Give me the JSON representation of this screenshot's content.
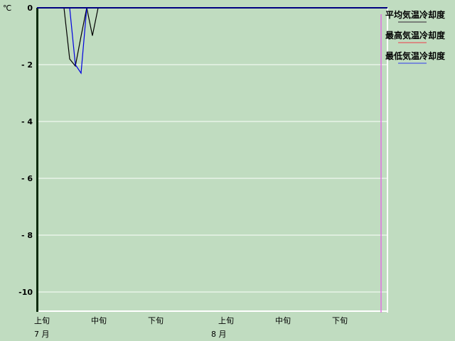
{
  "chart_data": {
    "type": "line",
    "unit_label": "℃",
    "ylim": [
      -10.7,
      0
    ],
    "yticks": [
      0,
      -2,
      -4,
      -6,
      -8,
      -10
    ],
    "ytick_labels": [
      "0",
      "- 2",
      "- 4",
      "- 6",
      "- 8",
      "-10"
    ],
    "grid": true,
    "legend_placement": "top-right",
    "xtick_labels": [
      "上旬",
      "中旬",
      "下旬",
      "上旬",
      "中旬",
      "下旬"
    ],
    "month_labels": [
      "7 月",
      "8 月"
    ],
    "x_start": "7/1",
    "x_end": "8/31",
    "marker_date": "8/31",
    "series": [
      {
        "name": "平均気温冷却度",
        "color": "#000000",
        "legend_color": "#606060",
        "points": [
          [
            "7/1",
            0
          ],
          [
            "7/5",
            0
          ],
          [
            "7/6",
            -1.8
          ],
          [
            "7/7",
            -2.05
          ],
          [
            "7/8",
            -1.0
          ],
          [
            "7/9",
            0
          ],
          [
            "7/10",
            -0.98
          ],
          [
            "7/11",
            0
          ],
          [
            "8/31",
            0
          ]
        ]
      },
      {
        "name": "最高気温冷却度",
        "color": "#c04020",
        "legend_color": "#e07070",
        "points": [
          [
            "7/1",
            0
          ],
          [
            "8/31",
            0
          ]
        ]
      },
      {
        "name": "最低気温冷却度",
        "color": "#0000e0",
        "legend_color": "#6070e0",
        "points": [
          [
            "7/1",
            0
          ],
          [
            "7/6",
            0
          ],
          [
            "7/7",
            -2.0
          ],
          [
            "7/8",
            -2.3
          ],
          [
            "7/9",
            0
          ],
          [
            "8/31",
            0
          ]
        ]
      }
    ]
  }
}
